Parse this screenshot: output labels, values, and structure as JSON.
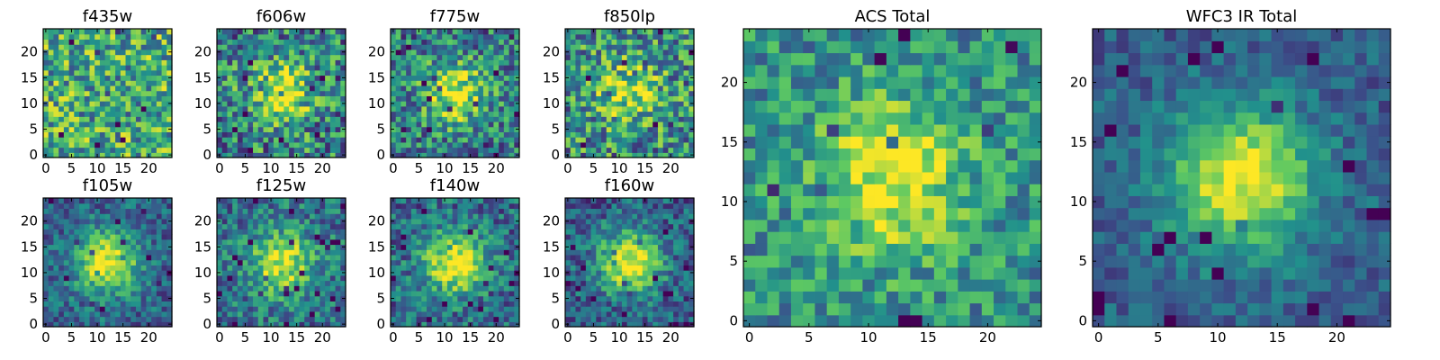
{
  "chart_data": [
    {
      "type": "heatmap",
      "title": "f435w",
      "grid_size": 25,
      "xlim": [
        0,
        24
      ],
      "ylim": [
        0,
        24
      ],
      "xticks": [
        0,
        5,
        10,
        15,
        20
      ],
      "yticks": [
        0,
        5,
        10,
        15,
        20
      ],
      "peak": [
        12,
        12
      ],
      "peak_level": 0.55,
      "noise_level": 0.45,
      "background_level": 0.62,
      "seed": 11
    },
    {
      "type": "heatmap",
      "title": "f606w",
      "grid_size": 25,
      "xlim": [
        0,
        24
      ],
      "ylim": [
        0,
        24
      ],
      "xticks": [
        0,
        5,
        10,
        15,
        20
      ],
      "yticks": [
        0,
        5,
        10,
        15,
        20
      ],
      "peak": [
        12,
        12
      ],
      "peak_level": 0.95,
      "noise_level": 0.45,
      "background_level": 0.45,
      "seed": 23
    },
    {
      "type": "heatmap",
      "title": "f775w",
      "grid_size": 25,
      "xlim": [
        0,
        24
      ],
      "ylim": [
        0,
        24
      ],
      "xticks": [
        0,
        5,
        10,
        15,
        20
      ],
      "yticks": [
        0,
        5,
        10,
        15,
        20
      ],
      "peak": [
        12,
        12
      ],
      "peak_level": 0.95,
      "noise_level": 0.4,
      "background_level": 0.42,
      "seed": 37
    },
    {
      "type": "heatmap",
      "title": "f850lp",
      "grid_size": 25,
      "xlim": [
        0,
        24
      ],
      "ylim": [
        0,
        24
      ],
      "xticks": [
        0,
        5,
        10,
        15,
        20
      ],
      "yticks": [
        0,
        5,
        10,
        15,
        20
      ],
      "peak": [
        12,
        12
      ],
      "peak_level": 0.85,
      "noise_level": 0.45,
      "background_level": 0.5,
      "seed": 41
    },
    {
      "type": "heatmap",
      "title": "f105w",
      "grid_size": 25,
      "xlim": [
        0,
        24
      ],
      "ylim": [
        0,
        24
      ],
      "xticks": [
        0,
        5,
        10,
        15,
        20
      ],
      "yticks": [
        0,
        5,
        10,
        15,
        20
      ],
      "peak": [
        12,
        12
      ],
      "peak_level": 1.0,
      "noise_level": 0.25,
      "background_level": 0.32,
      "seed": 53
    },
    {
      "type": "heatmap",
      "title": "f125w",
      "grid_size": 25,
      "xlim": [
        0,
        24
      ],
      "ylim": [
        0,
        24
      ],
      "xticks": [
        0,
        5,
        10,
        15,
        20
      ],
      "yticks": [
        0,
        5,
        10,
        15,
        20
      ],
      "peak": [
        12,
        12
      ],
      "peak_level": 0.95,
      "noise_level": 0.3,
      "background_level": 0.38,
      "seed": 67
    },
    {
      "type": "heatmap",
      "title": "f140w",
      "grid_size": 25,
      "xlim": [
        0,
        24
      ],
      "ylim": [
        0,
        24
      ],
      "xticks": [
        0,
        5,
        10,
        15,
        20
      ],
      "yticks": [
        0,
        5,
        10,
        15,
        20
      ],
      "peak": [
        12,
        12
      ],
      "peak_level": 1.0,
      "noise_level": 0.3,
      "background_level": 0.35,
      "seed": 71
    },
    {
      "type": "heatmap",
      "title": "f160w",
      "grid_size": 25,
      "xlim": [
        0,
        24
      ],
      "ylim": [
        0,
        24
      ],
      "xticks": [
        0,
        5,
        10,
        15,
        20
      ],
      "yticks": [
        0,
        5,
        10,
        15,
        20
      ],
      "peak": [
        12,
        12
      ],
      "peak_level": 1.0,
      "noise_level": 0.28,
      "background_level": 0.3,
      "seed": 83
    },
    {
      "type": "heatmap",
      "title": "ACS Total",
      "grid_size": 25,
      "xlim": [
        0,
        24
      ],
      "ylim": [
        0,
        24
      ],
      "xticks": [
        0,
        5,
        10,
        15,
        20
      ],
      "yticks": [
        0,
        5,
        10,
        15,
        20
      ],
      "peak": [
        12,
        12
      ],
      "peak_level": 1.0,
      "noise_level": 0.3,
      "background_level": 0.5,
      "seed": 97
    },
    {
      "type": "heatmap",
      "title": "WFC3 IR Total",
      "grid_size": 25,
      "xlim": [
        0,
        24
      ],
      "ylim": [
        0,
        24
      ],
      "xticks": [
        0,
        5,
        10,
        15,
        20
      ],
      "yticks": [
        0,
        5,
        10,
        15,
        20
      ],
      "peak": [
        12,
        12
      ],
      "peak_level": 1.0,
      "noise_level": 0.18,
      "background_level": 0.3,
      "seed": 101
    }
  ],
  "colormap": [
    "#440154",
    "#3b528b",
    "#21918c",
    "#5ec962",
    "#fde725"
  ]
}
